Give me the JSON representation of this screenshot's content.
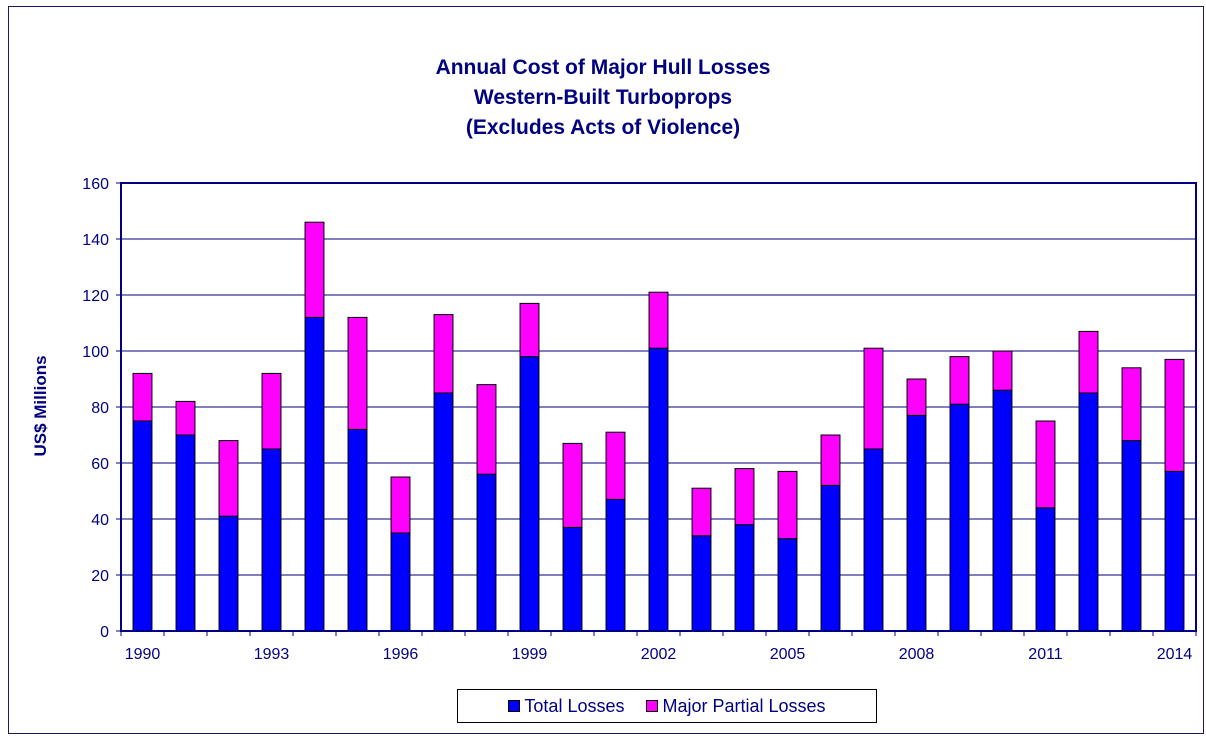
{
  "chart_data": {
    "type": "bar",
    "stacked": true,
    "title_lines": [
      "Annual Cost of Major Hull Losses",
      "Western-Built Turboprops",
      "(Excludes Acts of Violence)"
    ],
    "ylabel": "US$ Millions",
    "xlabel": "",
    "ylim": [
      0,
      160
    ],
    "yticks": [
      0,
      20,
      40,
      60,
      80,
      100,
      120,
      140,
      160
    ],
    "grid": true,
    "legend_position": "bottom-center",
    "categories": [
      "1990",
      "1991",
      "1992",
      "1993",
      "1994",
      "1995",
      "1996",
      "1997",
      "1998",
      "1999",
      "2000",
      "2001",
      "2002",
      "2003",
      "2004",
      "2005",
      "2006",
      "2007",
      "2008",
      "2009",
      "2010",
      "2011",
      "2012",
      "2013",
      "2014"
    ],
    "x_tick_labels": [
      "1990",
      "1993",
      "1996",
      "1999",
      "2002",
      "2005",
      "2008",
      "2011",
      "2014"
    ],
    "series": [
      {
        "name": "Total Losses",
        "color": "#0000ff",
        "values": [
          75,
          70,
          41,
          65,
          112,
          72,
          35,
          85,
          56,
          98,
          37,
          47,
          101,
          34,
          38,
          33,
          52,
          65,
          77,
          81,
          86,
          44,
          85,
          68,
          57
        ]
      },
      {
        "name": "Major Partial Losses",
        "color": "#ff00ff",
        "values": [
          17,
          12,
          27,
          27,
          34,
          40,
          20,
          28,
          32,
          19,
          30,
          24,
          20,
          17,
          20,
          24,
          18,
          36,
          13,
          17,
          14,
          31,
          22,
          26,
          40
        ]
      }
    ],
    "colors": {
      "axis": "#000080",
      "grid": "#000080",
      "text": "#000080"
    }
  }
}
